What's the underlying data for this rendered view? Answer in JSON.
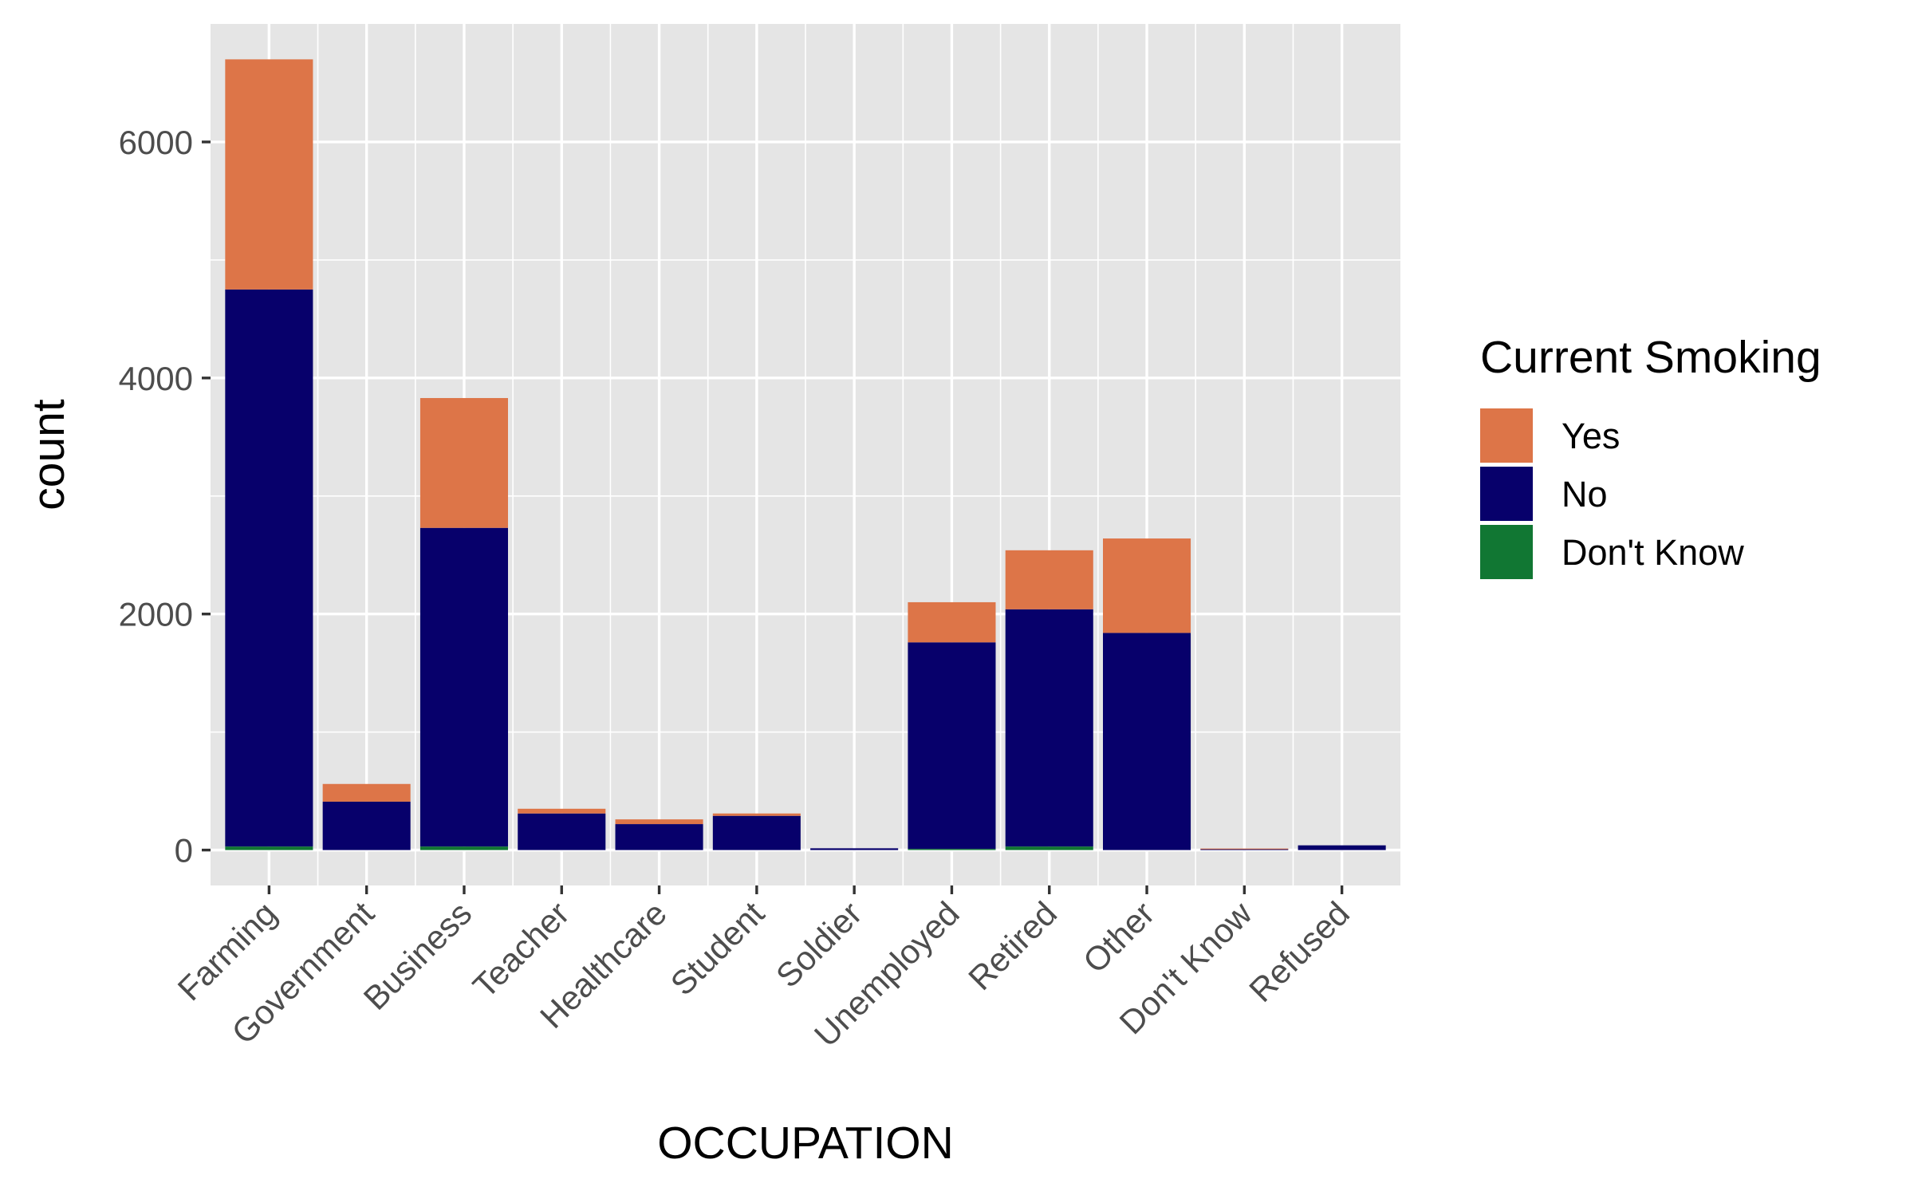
{
  "chart_data": {
    "type": "bar",
    "stacked": true,
    "title": "",
    "xlabel": "OCCUPATION",
    "ylabel": "count",
    "ylim": [
      -300,
      7000
    ],
    "yticks": [
      0,
      2000,
      4000,
      6000
    ],
    "ytick_labels": [
      "0",
      "2000",
      "4000",
      "6000"
    ],
    "grid": true,
    "legend_position": "right",
    "legend_title": "Current Smoking",
    "categories": [
      "Farming",
      "Government",
      "Business",
      "Teacher",
      "Healthcare",
      "Student",
      "Soldier",
      "Unemployed",
      "Retired",
      "Other",
      "Don't Know",
      "Refused"
    ],
    "series": [
      {
        "name": "Don't Know",
        "color": "#117733",
        "values": [
          30,
          0,
          30,
          0,
          0,
          0,
          0,
          10,
          30,
          0,
          0,
          0
        ]
      },
      {
        "name": "No",
        "color": "#07006b",
        "values": [
          4720,
          410,
          2700,
          310,
          220,
          290,
          15,
          1750,
          2010,
          1840,
          8,
          40
        ]
      },
      {
        "name": "Yes",
        "color": "#dd7548",
        "values": [
          1950,
          150,
          1100,
          40,
          40,
          20,
          0,
          340,
          500,
          800,
          5,
          0
        ]
      }
    ],
    "legend_order": [
      "Yes",
      "No",
      "Don't Know"
    ]
  },
  "colors": {
    "panel_background": "#e5e5e5",
    "grid": "#ffffff",
    "tick_mark": "#333333"
  }
}
